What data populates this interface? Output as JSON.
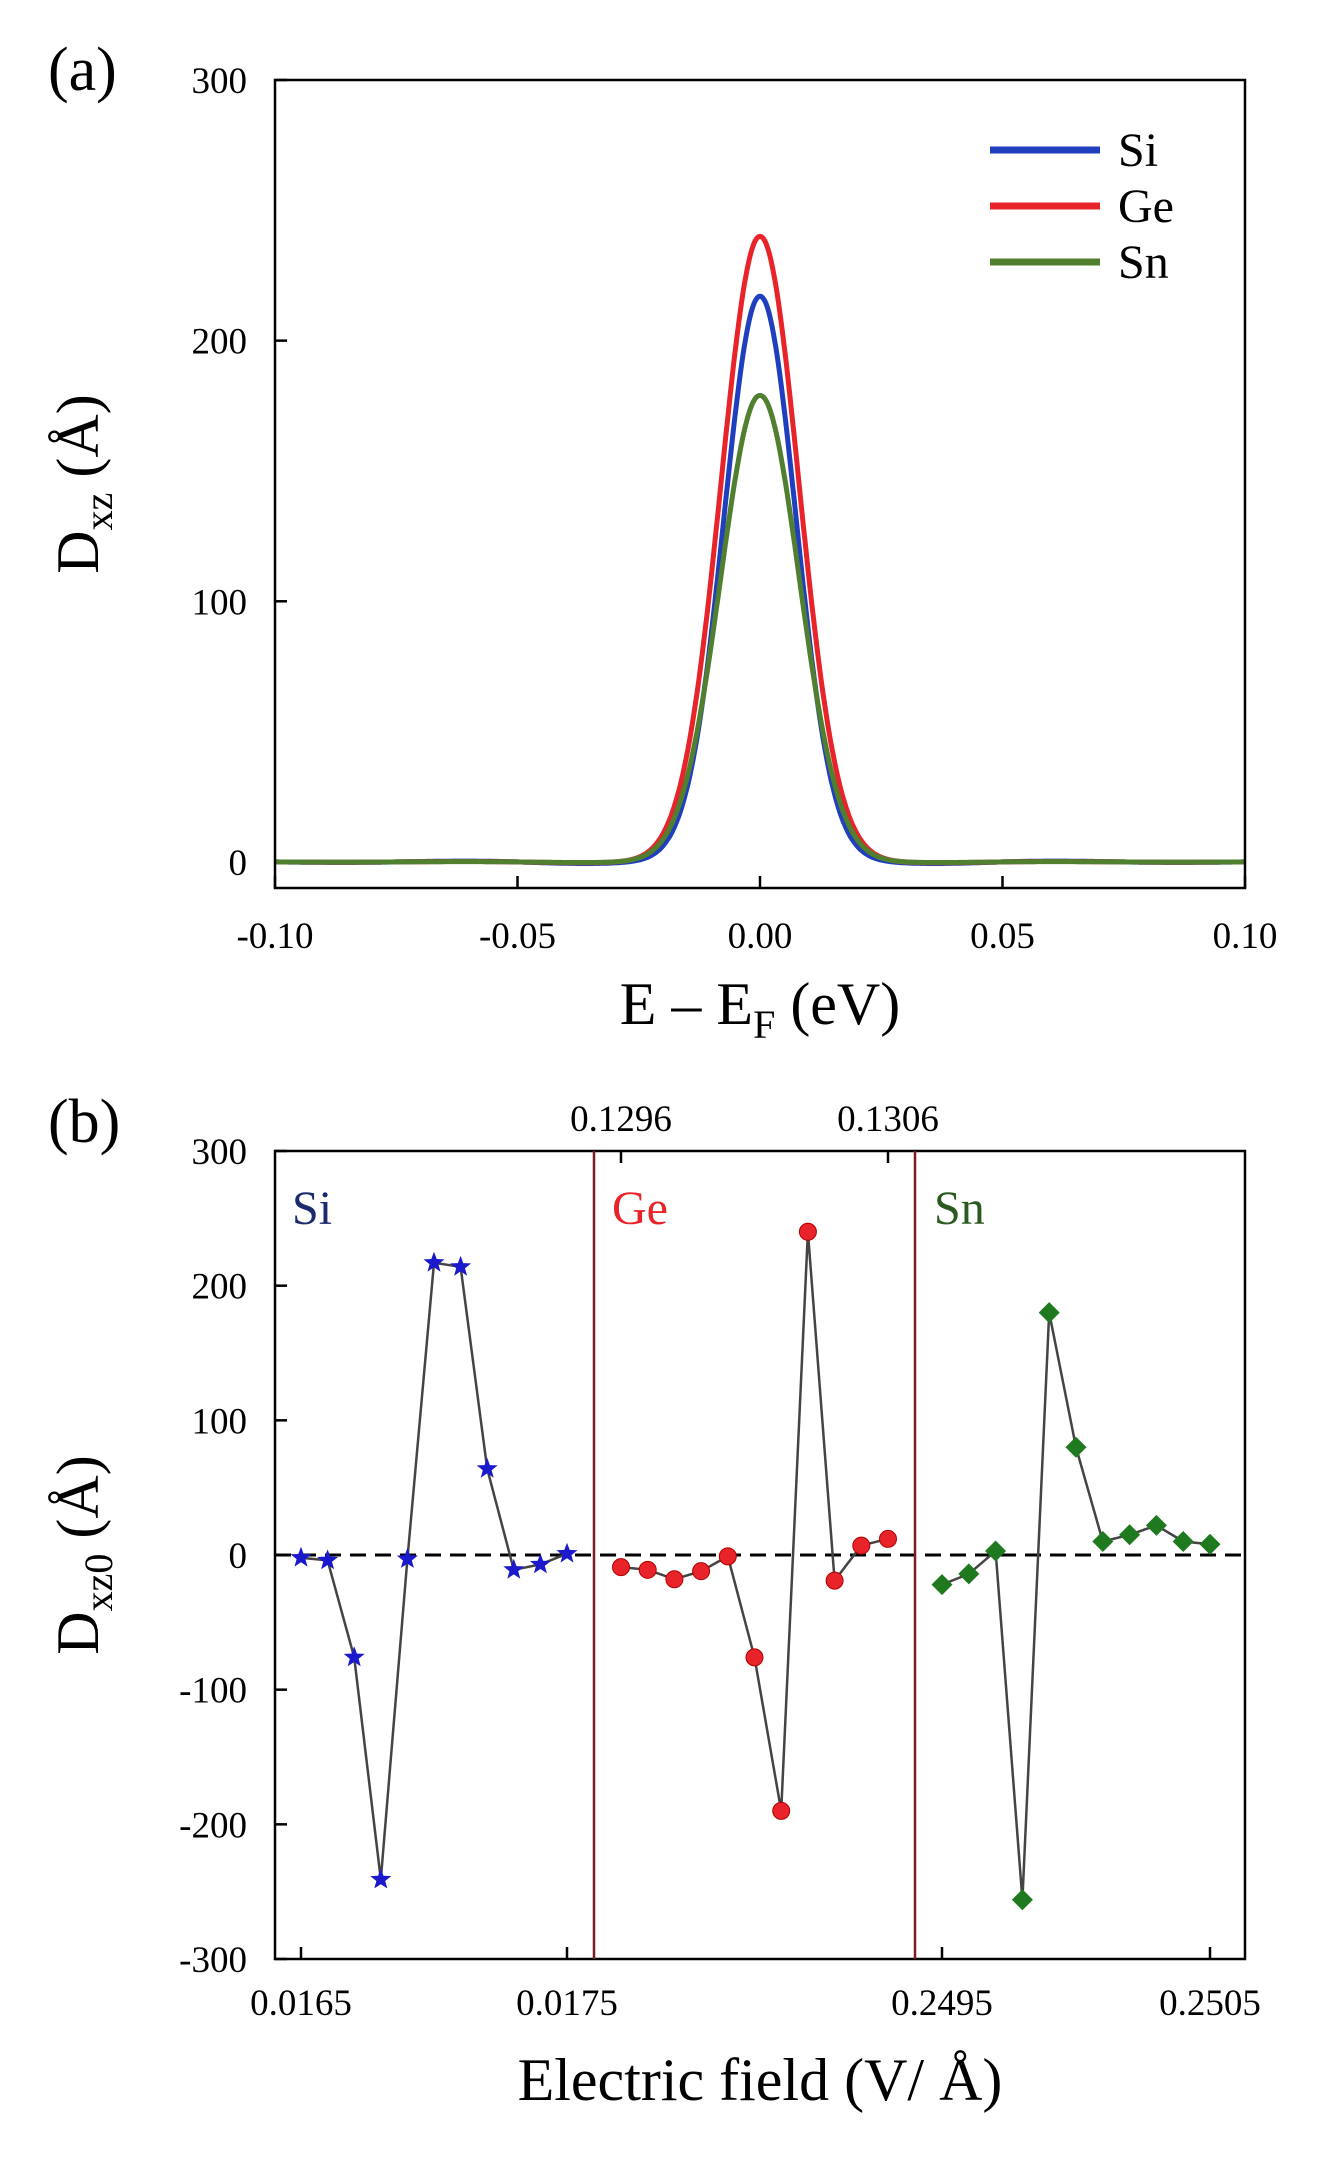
{
  "chart_data": [
    {
      "type": "line",
      "panel_label": "(a)",
      "xlabel": "E – E",
      "xlabel_sub": "F",
      "xlabel_unit": " (eV)",
      "ylabel": "D",
      "ylabel_sub": "xz",
      "ylabel_unit": " (Å)",
      "xlim": [
        -0.1,
        0.1
      ],
      "ylim": [
        -10,
        300
      ],
      "xticks": [
        -0.1,
        -0.05,
        0.0,
        0.05,
        0.1
      ],
      "xtick_labels": [
        "-0.10",
        "-0.05",
        "0.00",
        "0.05",
        "0.10"
      ],
      "yticks": [
        0,
        100,
        200,
        300
      ],
      "ytick_labels": [
        "0",
        "100",
        "200",
        "300"
      ],
      "legend_position": "top-right",
      "series": [
        {
          "name": "Si",
          "color": "#1f3fbf",
          "peak": 217,
          "width": 0.0074,
          "ripple": 1.5
        },
        {
          "name": "Ge",
          "color": "#e8242a",
          "peak": 240,
          "width": 0.008,
          "ripple": 0.8
        },
        {
          "name": "Sn",
          "color": "#4f7f2f",
          "peak": 179,
          "width": 0.0081,
          "ripple": 0.6
        }
      ]
    },
    {
      "type": "scatter",
      "panel_label": "(b)",
      "xlabel": "Electric field (V/ Å)",
      "ylabel": "D",
      "ylabel_sub": "xz0",
      "ylabel_unit": " (Å)",
      "ylim": [
        -300,
        300
      ],
      "yticks": [
        -300,
        -200,
        -100,
        0,
        100,
        200,
        300
      ],
      "ytick_labels": [
        "-300",
        "-200",
        "-100",
        "0",
        "100",
        "200",
        "300"
      ],
      "bottom_tick_labels": [
        "0.0165",
        "0.0175",
        "0.2495",
        "0.2505"
      ],
      "top_tick_labels": [
        "0.1296",
        "0.1306"
      ],
      "separator_color": "#7a1f1f",
      "line_color": "#444444",
      "segments": [
        {
          "name": "Si",
          "color": "#1a1acc",
          "label_color": "#1a2a6c",
          "marker": "star",
          "x_range": [
            0.0165,
            0.0175
          ],
          "x": [
            0.0165,
            0.0166,
            0.0167,
            0.0168,
            0.0169,
            0.017,
            0.0171,
            0.0172,
            0.0173,
            0.0174,
            0.0175
          ],
          "y": [
            -2,
            -4,
            -76,
            -241,
            -3,
            217,
            214,
            64,
            -11,
            -7,
            1
          ]
        },
        {
          "name": "Ge",
          "color": "#e8242a",
          "label_color": "#e8242a",
          "marker": "circle",
          "x_range": [
            0.1296,
            0.1306
          ],
          "x": [
            0.1296,
            0.1297,
            0.1298,
            0.1299,
            0.13,
            0.1301,
            0.1302,
            0.1303,
            0.1304,
            0.1305,
            0.1306
          ],
          "y": [
            -9,
            -11,
            -18,
            -12,
            -1,
            -76,
            -190,
            240,
            -19,
            7,
            12
          ]
        },
        {
          "name": "Sn",
          "color": "#1f7a1f",
          "label_color": "#2a5a1f",
          "marker": "diamond",
          "x_range": [
            0.2495,
            0.2505
          ],
          "x": [
            0.2495,
            0.2496,
            0.2497,
            0.2498,
            0.2499,
            0.25,
            0.2501,
            0.2502,
            0.2503,
            0.2504,
            0.2505
          ],
          "y": [
            -22,
            -14,
            3,
            -256,
            180,
            80,
            10,
            15,
            22,
            10,
            8
          ]
        }
      ]
    }
  ]
}
